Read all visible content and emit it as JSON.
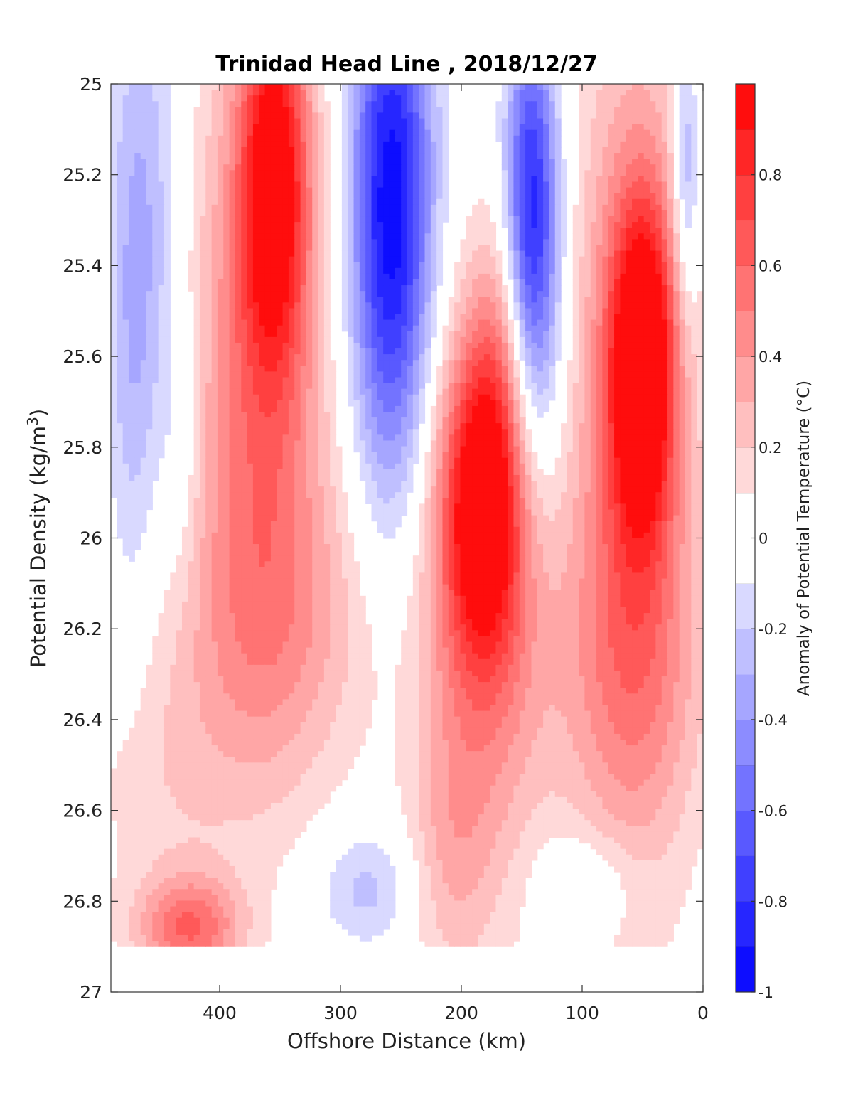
{
  "chart_data": {
    "type": "heatmap",
    "subtype": "filled-contour",
    "title": "Trinidad Head Line , 2018/12/27",
    "xlabel": "Offshore Distance (km)",
    "ylabel": "Potential Density (kg/m",
    "ylabel_sup": "3",
    "ylabel_close": ")",
    "xlim": [
      490,
      0
    ],
    "x_reversed": true,
    "ylim": [
      25,
      27
    ],
    "y_reversed": true,
    "x_ticks": [
      400,
      300,
      200,
      100,
      0
    ],
    "y_ticks": [
      25,
      25.2,
      25.4,
      25.6,
      25.8,
      26,
      26.2,
      26.4,
      26.6,
      26.8,
      27
    ],
    "y_tick_labels": [
      "25",
      "25.2",
      "25.4",
      "25.6",
      "25.8",
      "26",
      "26.2",
      "26.4",
      "26.6",
      "26.8",
      "27"
    ],
    "colorbar": {
      "label": "Anomaly of Potential Temperature (°C)",
      "range": [
        -1,
        1
      ],
      "ticks": [
        -1,
        -0.8,
        -0.6,
        -0.4,
        -0.2,
        0,
        0.2,
        0.4,
        0.6,
        0.8
      ],
      "tick_labels": [
        "-1",
        "-0.8",
        "-0.6",
        "-0.4",
        "-0.2",
        "0",
        "0.2",
        "0.4",
        "0.6",
        "0.8"
      ],
      "levels": 20,
      "colormap": "blue-white-red",
      "neg_color": "#0000ff",
      "pos_color": "#ff0000",
      "zero_color": "#ffffff"
    },
    "data_floor_density": 26.9,
    "features": [
      {
        "kind": "cold",
        "x": 258,
        "y": 25.28,
        "sx": 24,
        "sy": 0.42,
        "amp": -1.0
      },
      {
        "kind": "cold",
        "x": 142,
        "y": 25.22,
        "sx": 15,
        "sy": 0.28,
        "amp": -0.7
      },
      {
        "kind": "cold",
        "x": 138,
        "y": 25.55,
        "sx": 18,
        "sy": 0.3,
        "amp": -0.35
      },
      {
        "kind": "cold",
        "x": 462,
        "y": 25.3,
        "sx": 22,
        "sy": 0.4,
        "amp": -0.3
      },
      {
        "kind": "cold",
        "x": 472,
        "y": 25.75,
        "sx": 14,
        "sy": 0.4,
        "amp": -0.15
      },
      {
        "kind": "cold",
        "x": 432,
        "y": 25.8,
        "sx": 12,
        "sy": 0.22,
        "amp": -0.15
      },
      {
        "kind": "cold",
        "x": 14,
        "y": 25.2,
        "sx": 8,
        "sy": 0.22,
        "amp": -0.4
      },
      {
        "kind": "cold",
        "x": 278,
        "y": 26.77,
        "sx": 30,
        "sy": 0.09,
        "amp": -0.25
      },
      {
        "kind": "cold",
        "x": 95,
        "y": 26.76,
        "sx": 30,
        "sy": 0.08,
        "amp": -0.18
      },
      {
        "kind": "warm",
        "x": 355,
        "y": 25.2,
        "sx": 20,
        "sy": 0.3,
        "amp": 0.85
      },
      {
        "kind": "warm",
        "x": 368,
        "y": 25.65,
        "sx": 42,
        "sy": 0.55,
        "amp": 0.5
      },
      {
        "kind": "warm",
        "x": 350,
        "y": 26.2,
        "sx": 60,
        "sy": 0.25,
        "amp": 0.25
      },
      {
        "kind": "warm",
        "x": 182,
        "y": 25.92,
        "sx": 24,
        "sy": 0.25,
        "amp": 0.85
      },
      {
        "kind": "warm",
        "x": 182,
        "y": 26.15,
        "sx": 38,
        "sy": 0.45,
        "amp": 0.45
      },
      {
        "kind": "warm",
        "x": 168,
        "y": 25.55,
        "sx": 16,
        "sy": 0.2,
        "amp": 0.2
      },
      {
        "kind": "warm",
        "x": 50,
        "y": 25.62,
        "sx": 18,
        "sy": 0.25,
        "amp": 0.95
      },
      {
        "kind": "warm",
        "x": 58,
        "y": 25.8,
        "sx": 36,
        "sy": 0.65,
        "amp": 0.55
      },
      {
        "kind": "warm",
        "x": 62,
        "y": 26.3,
        "sx": 55,
        "sy": 0.25,
        "amp": 0.2
      },
      {
        "kind": "warm",
        "x": 425,
        "y": 26.86,
        "sx": 30,
        "sy": 0.08,
        "amp": 0.55
      },
      {
        "kind": "warm",
        "x": 450,
        "y": 26.55,
        "sx": 45,
        "sy": 0.25,
        "amp": 0.15
      },
      {
        "kind": "warm",
        "x": 210,
        "y": 26.7,
        "sx": 25,
        "sy": 0.2,
        "amp": 0.2
      }
    ]
  }
}
